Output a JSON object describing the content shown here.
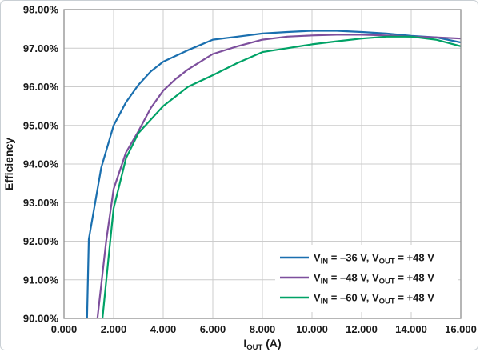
{
  "chart_data": {
    "type": "line",
    "title": "",
    "ylabel": "Efficiency",
    "xlabel": "IOUT (A)",
    "xlabel_parts": [
      {
        "t": "I"
      },
      {
        "t": "OUT",
        "sub": true
      },
      {
        "t": " (A)"
      }
    ],
    "xlim": [
      0,
      16
    ],
    "ylim": [
      90,
      98
    ],
    "grid": true,
    "legend_position": "bottom-right",
    "colors": {
      "grid": "#cccccc",
      "axis": "#8f8f8f",
      "text": "#1a1a1a",
      "plot_background": "#ffffff"
    },
    "yticks": [
      {
        "v": 98,
        "label": "98.00%"
      },
      {
        "v": 97,
        "label": "97.00%"
      },
      {
        "v": 96,
        "label": "96.00%"
      },
      {
        "v": 95,
        "label": "95.00%"
      },
      {
        "v": 94,
        "label": "94.00%"
      },
      {
        "v": 93,
        "label": "93.00%"
      },
      {
        "v": 92,
        "label": "92.00%"
      },
      {
        "v": 91,
        "label": "91.00%"
      },
      {
        "v": 90,
        "label": "90.00%"
      }
    ],
    "xticks": [
      {
        "v": 0,
        "label": "0.000"
      },
      {
        "v": 2,
        "label": "2.000"
      },
      {
        "v": 4,
        "label": "4.000"
      },
      {
        "v": 6,
        "label": "6.000"
      },
      {
        "v": 8,
        "label": "8.000"
      },
      {
        "v": 10,
        "label": "10.000"
      },
      {
        "v": 12,
        "label": "12.000"
      },
      {
        "v": 14,
        "label": "14.000"
      },
      {
        "v": 16,
        "label": "16.000"
      }
    ],
    "series": [
      {
        "name": "VIN = –36 V, VOUT = +48 V",
        "label_parts": [
          {
            "t": "V"
          },
          {
            "t": "IN",
            "sub": true
          },
          {
            "t": " = –36 V, V"
          },
          {
            "t": "OUT",
            "sub": true
          },
          {
            "t": " = +48 V"
          }
        ],
        "color": "#1a6faf",
        "points": [
          [
            0.93,
            90
          ],
          [
            1.0,
            92.05
          ],
          [
            1.5,
            93.9
          ],
          [
            2.0,
            95.0
          ],
          [
            2.5,
            95.6
          ],
          [
            3.0,
            96.05
          ],
          [
            3.5,
            96.4
          ],
          [
            4.0,
            96.65
          ],
          [
            5.0,
            96.95
          ],
          [
            6.0,
            97.22
          ],
          [
            7.0,
            97.3
          ],
          [
            8.0,
            97.38
          ],
          [
            9.0,
            97.42
          ],
          [
            10.0,
            97.45
          ],
          [
            11.0,
            97.45
          ],
          [
            12.0,
            97.42
          ],
          [
            13.0,
            97.38
          ],
          [
            14.0,
            97.32
          ],
          [
            15.0,
            97.28
          ],
          [
            16.0,
            97.15
          ]
        ]
      },
      {
        "name": "VIN = –48 V, VOUT = +48 V",
        "label_parts": [
          {
            "t": "V"
          },
          {
            "t": "IN",
            "sub": true
          },
          {
            "t": " = –48 V, V"
          },
          {
            "t": "OUT",
            "sub": true
          },
          {
            "t": " = +48 V"
          }
        ],
        "color": "#7d4f9d",
        "points": [
          [
            1.35,
            90
          ],
          [
            1.7,
            92.0
          ],
          [
            2.0,
            93.35
          ],
          [
            2.5,
            94.3
          ],
          [
            3.0,
            94.85
          ],
          [
            3.5,
            95.45
          ],
          [
            4.0,
            95.9
          ],
          [
            4.5,
            96.2
          ],
          [
            5.0,
            96.45
          ],
          [
            6.0,
            96.85
          ],
          [
            7.0,
            97.05
          ],
          [
            8.0,
            97.22
          ],
          [
            9.0,
            97.3
          ],
          [
            10.0,
            97.33
          ],
          [
            11.0,
            97.35
          ],
          [
            12.0,
            97.35
          ],
          [
            13.0,
            97.33
          ],
          [
            14.0,
            97.3
          ],
          [
            15.0,
            97.28
          ],
          [
            16.0,
            97.25
          ]
        ]
      },
      {
        "name": "VIN = –60 V, VOUT = +48 V",
        "label_parts": [
          {
            "t": "V"
          },
          {
            "t": "IN",
            "sub": true
          },
          {
            "t": " = –60 V, V"
          },
          {
            "t": "OUT",
            "sub": true
          },
          {
            "t": " = +48 V"
          }
        ],
        "color": "#00a266",
        "points": [
          [
            1.55,
            90
          ],
          [
            1.8,
            91.6
          ],
          [
            2.0,
            92.85
          ],
          [
            2.5,
            94.15
          ],
          [
            3.0,
            94.8
          ],
          [
            3.5,
            95.15
          ],
          [
            4.0,
            95.5
          ],
          [
            5.0,
            96.0
          ],
          [
            6.0,
            96.3
          ],
          [
            7.0,
            96.62
          ],
          [
            8.0,
            96.9
          ],
          [
            9.0,
            97.0
          ],
          [
            10.0,
            97.1
          ],
          [
            11.0,
            97.18
          ],
          [
            12.0,
            97.25
          ],
          [
            13.0,
            97.3
          ],
          [
            14.0,
            97.3
          ],
          [
            15.0,
            97.22
          ],
          [
            16.0,
            97.05
          ]
        ]
      }
    ]
  }
}
